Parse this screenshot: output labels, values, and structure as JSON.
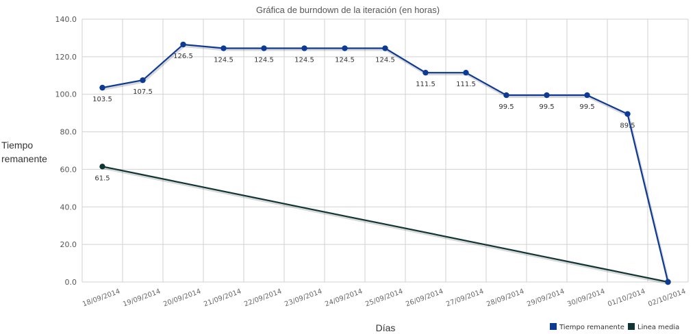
{
  "chart_data": {
    "type": "line",
    "title": "Gráfica de burndown de la iteración (en horas)",
    "xlabel": "Días",
    "ylabel_lines": [
      "Tiempo",
      "remanente"
    ],
    "ylim": [
      0,
      140
    ],
    "yticks": [
      "0.0",
      "20.0",
      "40.0",
      "60.0",
      "80.0",
      "100.0",
      "120.0",
      "140.0"
    ],
    "categories": [
      "18/09/2014",
      "19/09/2014",
      "20/09/2014",
      "21/09/2014",
      "22/09/2014",
      "23/09/2014",
      "24/09/2014",
      "25/09/2014",
      "26/09/2014",
      "27/09/2014",
      "28/09/2014",
      "29/09/2014",
      "30/09/2014",
      "01/10/2014",
      "02/10/2014"
    ],
    "grid": true,
    "legend_position": "bottom-right",
    "series": [
      {
        "name": "Tiempo remanente",
        "color": "#0d3a94",
        "values": [
          103.5,
          107.5,
          126.5,
          124.5,
          124.5,
          124.5,
          124.5,
          124.5,
          111.5,
          111.5,
          99.5,
          99.5,
          99.5,
          89.5,
          0
        ],
        "labels": [
          "103.5",
          "107.5",
          "126.5",
          "124.5",
          "124.5",
          "124.5",
          "124.5",
          "124.5",
          "111.5",
          "111.5",
          "99.5",
          "99.5",
          "99.5",
          "89.5",
          ""
        ]
      },
      {
        "name": "Linea media",
        "color": "#0f3535",
        "values": [
          61.5,
          57.1,
          52.7,
          48.3,
          43.9,
          39.5,
          35.1,
          30.8,
          26.4,
          22.0,
          17.6,
          13.2,
          8.8,
          4.4,
          0
        ],
        "labels": [
          "61.5",
          "",
          "",
          "",
          "",
          "",
          "",
          "",
          "",
          "",
          "",
          "",
          "",
          "",
          ""
        ]
      }
    ]
  }
}
